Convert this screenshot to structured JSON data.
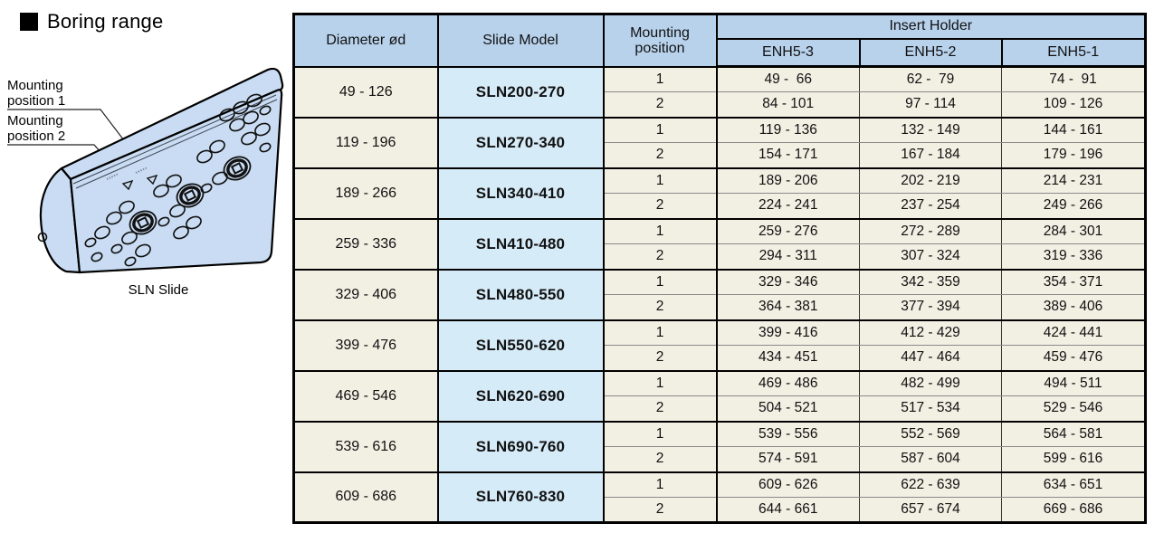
{
  "section": {
    "title": "Boring range"
  },
  "diagram": {
    "labels": [
      "Mounting position 1",
      "Mounting position 2"
    ],
    "caption": "SLN Slide",
    "markers": [
      "mounting-position-1-marker",
      "mounting-position-2-marker"
    ]
  },
  "colors": {
    "header_bg": "#b8d2ec",
    "model_cell_bg": "#d6ebf8",
    "data_cell_bg": "#f2efe3",
    "block_fill": "#c9dcf3",
    "border": "#000000"
  },
  "table": {
    "headers": {
      "diameter": "Diameter ød",
      "slide_model": "Slide Model",
      "mounting_position": "Mounting position",
      "insert_holder": "Insert Holder",
      "enh": [
        "ENH5-3",
        "ENH5-2",
        "ENH5-1"
      ]
    },
    "rows": [
      {
        "diameter": "49 - 126",
        "model": "SLN200-270",
        "positions": [
          {
            "position": "1",
            "values": [
              "49 -  66",
              "62 -  79",
              "74 -  91"
            ]
          },
          {
            "position": "2",
            "values": [
              "84 - 101",
              "97 - 114",
              "109 - 126"
            ]
          }
        ]
      },
      {
        "diameter": "119 - 196",
        "model": "SLN270-340",
        "positions": [
          {
            "position": "1",
            "values": [
              "119 - 136",
              "132 - 149",
              "144 - 161"
            ]
          },
          {
            "position": "2",
            "values": [
              "154 - 171",
              "167 - 184",
              "179 - 196"
            ]
          }
        ]
      },
      {
        "diameter": "189 - 266",
        "model": "SLN340-410",
        "positions": [
          {
            "position": "1",
            "values": [
              "189 - 206",
              "202 - 219",
              "214 - 231"
            ]
          },
          {
            "position": "2",
            "values": [
              "224 - 241",
              "237 - 254",
              "249 - 266"
            ]
          }
        ]
      },
      {
        "diameter": "259 - 336",
        "model": "SLN410-480",
        "positions": [
          {
            "position": "1",
            "values": [
              "259 - 276",
              "272 - 289",
              "284 - 301"
            ]
          },
          {
            "position": "2",
            "values": [
              "294 - 311",
              "307 - 324",
              "319 - 336"
            ]
          }
        ]
      },
      {
        "diameter": "329 - 406",
        "model": "SLN480-550",
        "positions": [
          {
            "position": "1",
            "values": [
              "329 - 346",
              "342 - 359",
              "354 - 371"
            ]
          },
          {
            "position": "2",
            "values": [
              "364 - 381",
              "377 - 394",
              "389 - 406"
            ]
          }
        ]
      },
      {
        "diameter": "399 - 476",
        "model": "SLN550-620",
        "positions": [
          {
            "position": "1",
            "values": [
              "399 - 416",
              "412 - 429",
              "424 - 441"
            ]
          },
          {
            "position": "2",
            "values": [
              "434 - 451",
              "447 - 464",
              "459 - 476"
            ]
          }
        ]
      },
      {
        "diameter": "469 - 546",
        "model": "SLN620-690",
        "positions": [
          {
            "position": "1",
            "values": [
              "469 - 486",
              "482 - 499",
              "494 - 511"
            ]
          },
          {
            "position": "2",
            "values": [
              "504 - 521",
              "517 - 534",
              "529 - 546"
            ]
          }
        ]
      },
      {
        "diameter": "539 - 616",
        "model": "SLN690-760",
        "positions": [
          {
            "position": "1",
            "values": [
              "539 - 556",
              "552 - 569",
              "564 - 581"
            ]
          },
          {
            "position": "2",
            "values": [
              "574 - 591",
              "587 - 604",
              "599 - 616"
            ]
          }
        ]
      },
      {
        "diameter": "609 - 686",
        "model": "SLN760-830",
        "positions": [
          {
            "position": "1",
            "values": [
              "609 - 626",
              "622 - 639",
              "634 - 651"
            ]
          },
          {
            "position": "2",
            "values": [
              "644 - 661",
              "657 - 674",
              "669 - 686"
            ]
          }
        ]
      }
    ]
  }
}
